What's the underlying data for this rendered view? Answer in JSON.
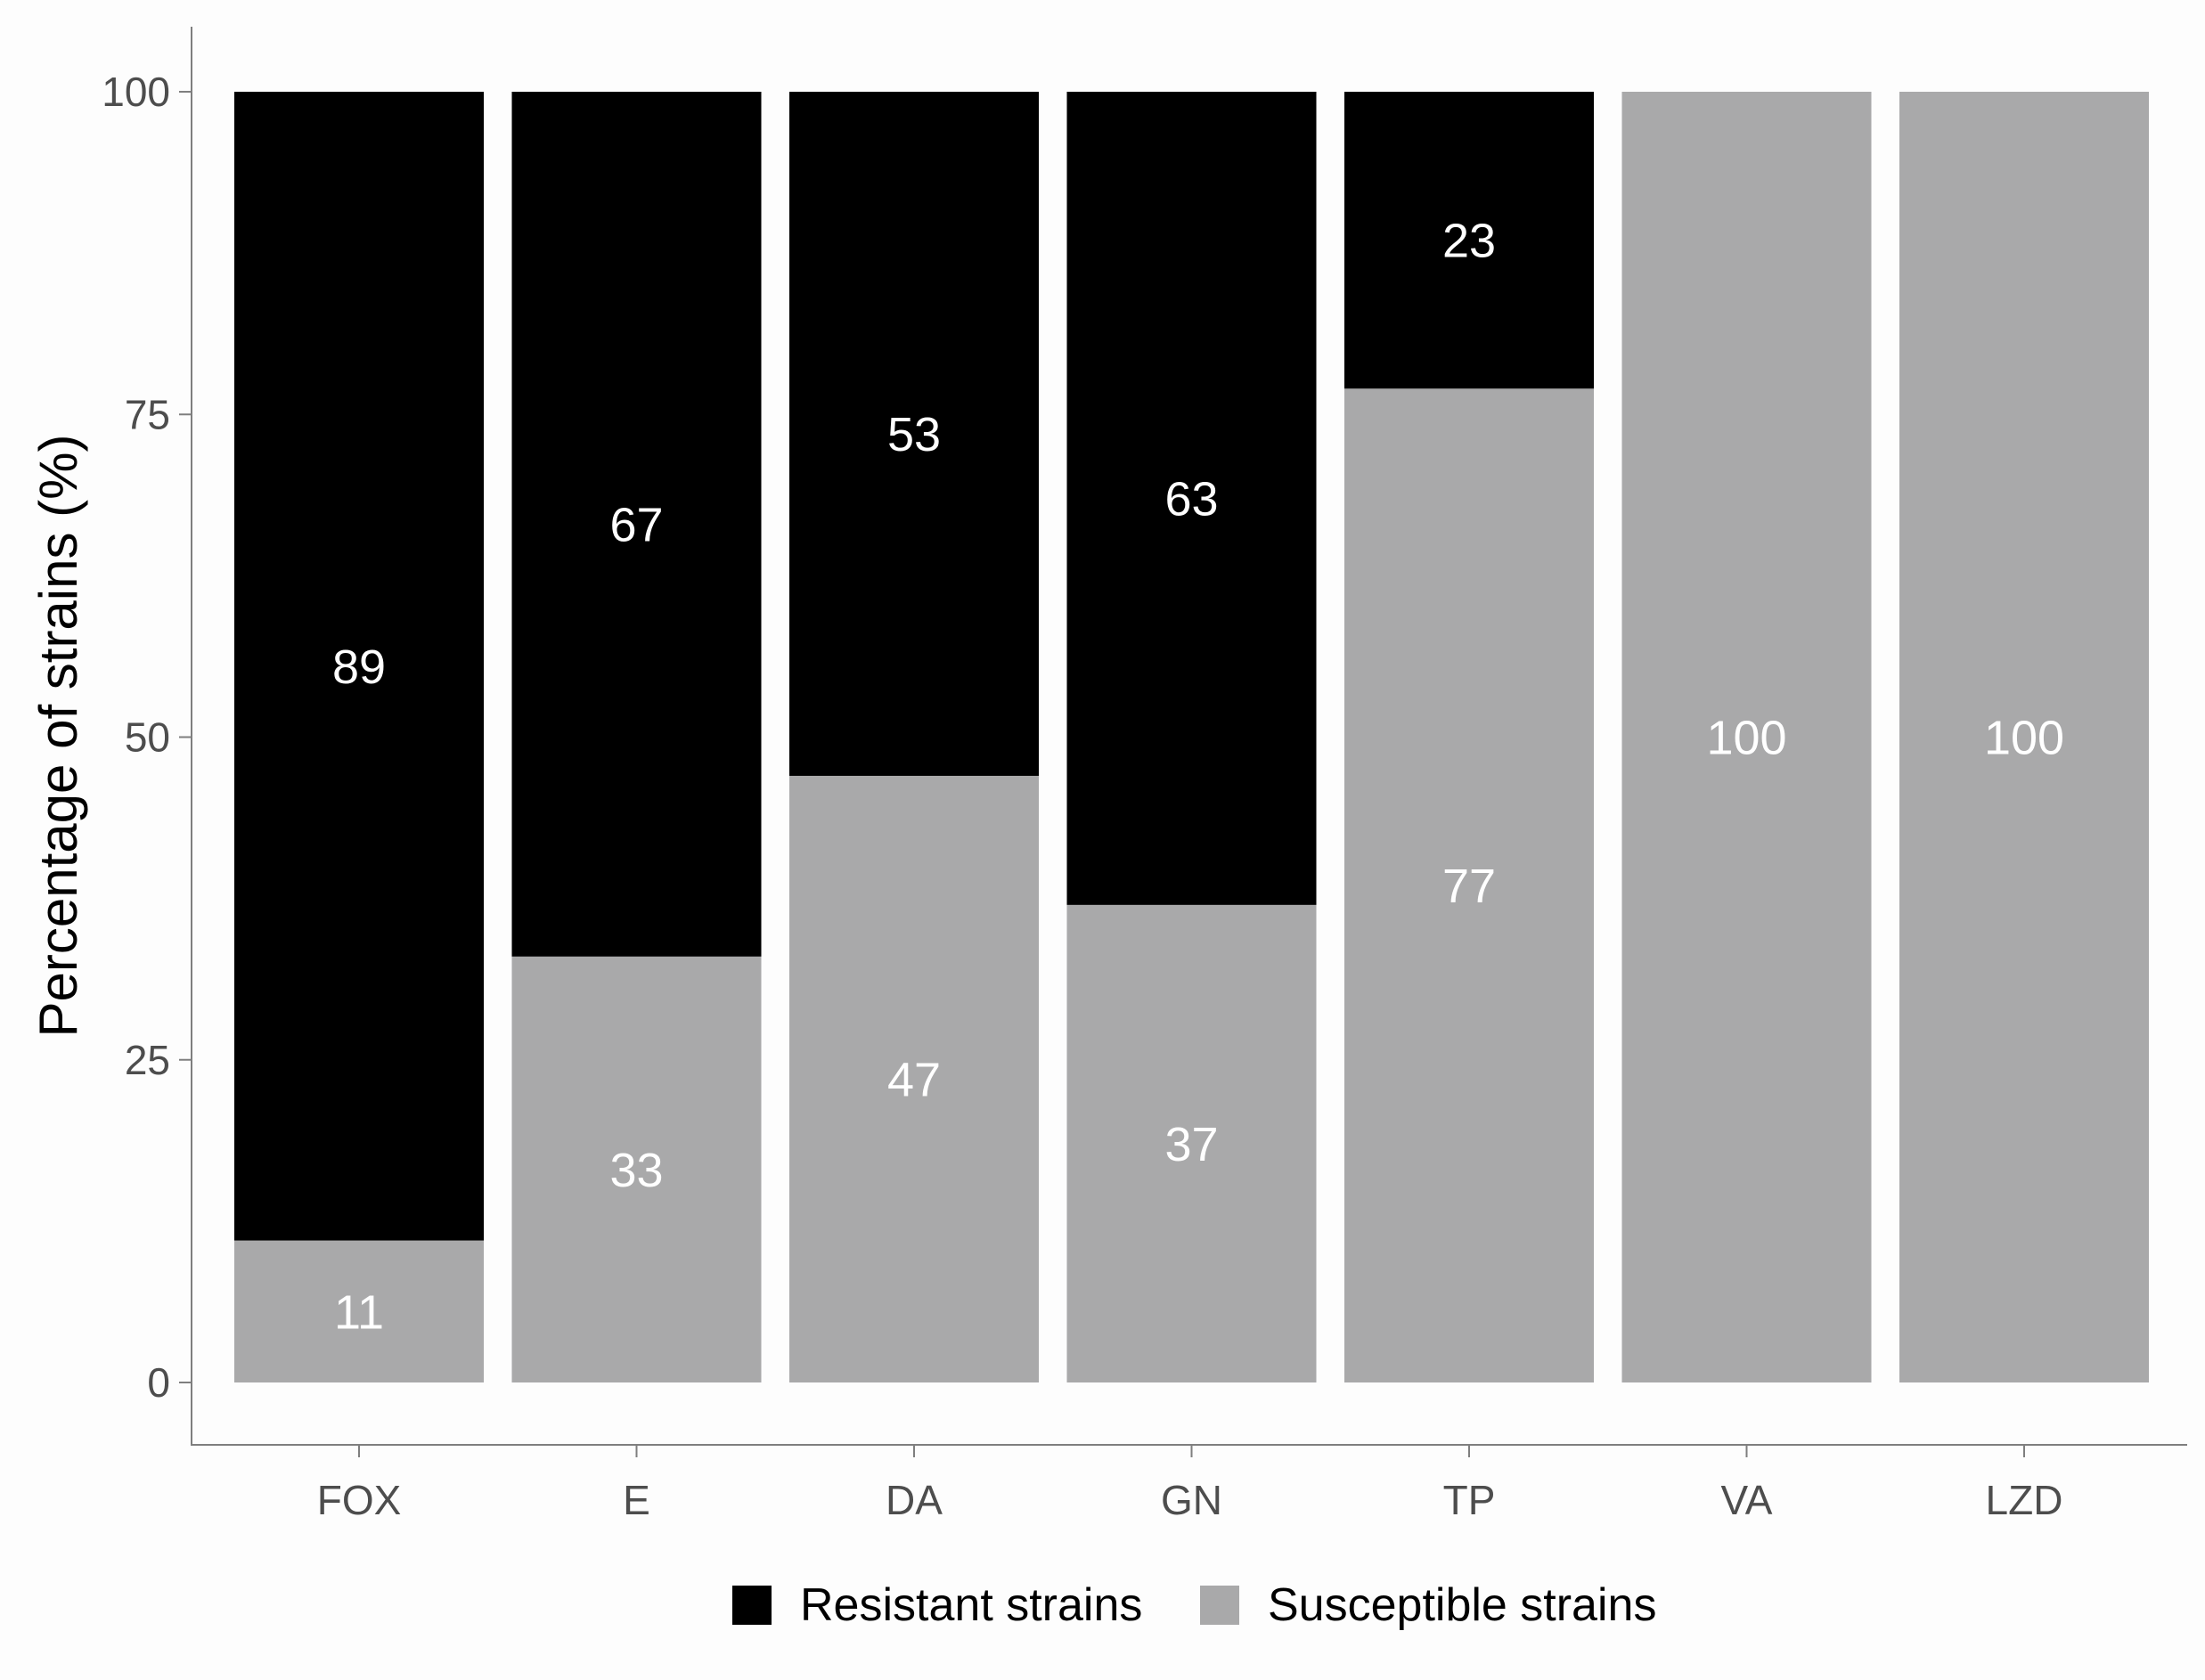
{
  "chart_data": {
    "type": "bar",
    "stacked": true,
    "categories": [
      "FOX",
      "E",
      "DA",
      "GN",
      "TP",
      "VA",
      "LZD"
    ],
    "series": [
      {
        "name": "Resistant strains",
        "color": "#000000",
        "values": [
          89,
          67,
          53,
          63,
          23,
          0,
          0
        ],
        "labels": [
          "89",
          "67",
          "53",
          "63",
          "23",
          "",
          ""
        ]
      },
      {
        "name": "Susceptible strains",
        "color": "#a9a9aa",
        "values": [
          11,
          33,
          47,
          37,
          77,
          100,
          100
        ],
        "labels": [
          "11",
          "33",
          "47",
          "37",
          "77",
          "100",
          "100"
        ]
      }
    ],
    "stack_order": [
      "Susceptible strains",
      "Resistant strains"
    ],
    "title": "",
    "xlabel": "",
    "ylabel": "Percentage of strains (%)",
    "ylim": [
      0,
      100
    ],
    "yticks": [
      0,
      25,
      50,
      75,
      100
    ],
    "ytick_labels": [
      "0",
      "25",
      "50",
      "75",
      "100"
    ],
    "grid": false,
    "legend_position": "bottom"
  }
}
